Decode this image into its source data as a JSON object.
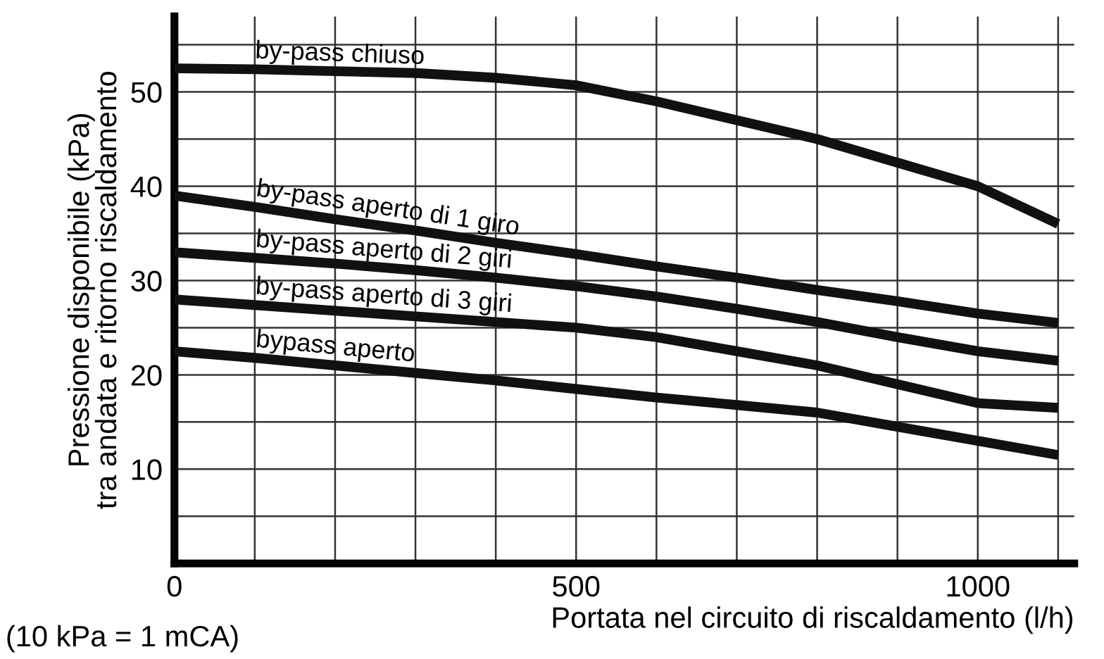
{
  "chart_data": {
    "type": "line",
    "xlabel": "Portata nel circuito di riscaldamento (l/h)",
    "ylabel": "Pressione disponibile (kPa)\ntra andata e ritorno riscaldamento",
    "x": [
      0,
      100,
      200,
      300,
      400,
      500,
      600,
      700,
      800,
      900,
      1000,
      1100
    ],
    "series": [
      {
        "color": "#111111",
        "values": [
          52.5,
          52.4,
          52.2,
          52,
          51.5,
          50.7,
          49,
          47,
          45,
          42.5,
          40,
          36
        ]
      },
      {
        "color": "#111111",
        "values": [
          39,
          37.8,
          36.5,
          35.3,
          34,
          32.8,
          31.5,
          30.3,
          29,
          27.8,
          26.5,
          25.5
        ]
      },
      {
        "color": "#111111",
        "values": [
          33,
          32.4,
          31.8,
          31.1,
          30.3,
          29.4,
          28.3,
          27,
          25.6,
          24,
          22.5,
          21.5
        ]
      },
      {
        "color": "#111111",
        "values": [
          28,
          27.4,
          26.8,
          26.2,
          25.6,
          25,
          24,
          22.5,
          21,
          19,
          17,
          16.5
        ]
      },
      {
        "color": "#111111",
        "values": [
          22.5,
          21.8,
          21,
          20.2,
          19.4,
          18.5,
          17.6,
          16.8,
          16,
          14.5,
          13,
          11.5
        ]
      }
    ],
    "annotations": [
      "by-pass chiuso",
      "by-pass aperto di 1 giro",
      "by-pass aperto di 2 giri",
      "by-pass aperto di 3 giri",
      "bypass aperto",
      "(10 kPa = 1 mCA)"
    ],
    "xlim": [
      0,
      1120
    ],
    "ylim": [
      0,
      58
    ],
    "xticks": [
      0,
      {
        "value": 100,
        "label": null
      },
      {
        "value": 200,
        "label": null
      },
      {
        "value": 300,
        "label": null
      },
      {
        "value": 400,
        "label": null
      },
      500,
      {
        "value": 600,
        "label": null
      },
      {
        "value": 700,
        "label": null
      },
      {
        "value": 800,
        "label": null
      },
      {
        "value": 900,
        "label": null
      },
      1000,
      {
        "value": 1100,
        "label": null
      }
    ],
    "yticks": [
      {
        "value": 5,
        "label": null
      },
      10,
      {
        "value": 15,
        "label": null
      },
      20,
      {
        "value": 25,
        "label": null
      },
      30,
      {
        "value": 35,
        "label": null
      },
      40,
      {
        "value": 45,
        "label": null
      },
      50,
      {
        "value": 55,
        "label": null
      }
    ],
    "grid": true,
    "marker": "none",
    "line_style": "solid"
  }
}
